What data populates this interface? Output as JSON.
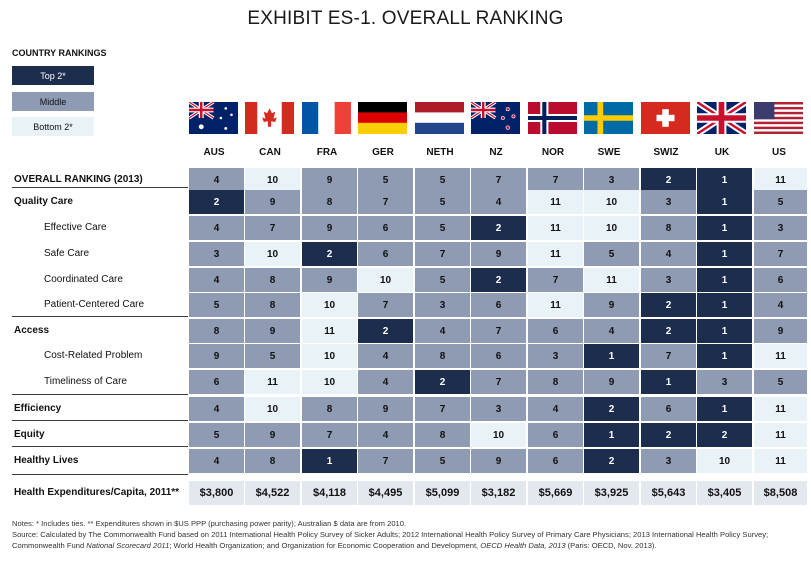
{
  "title": "EXHIBIT ES-1. OVERALL RANKING",
  "legend": {
    "heading": "COUNTRY RANKINGS",
    "items": [
      {
        "label": "Top 2*",
        "level": "top"
      },
      {
        "label": "Middle",
        "level": "mid"
      },
      {
        "label": "Bottom 2*",
        "level": "bot"
      }
    ]
  },
  "colors": {
    "top": "#1d2d4e",
    "middle": "#8e9bb3",
    "bottom": "#e8f2f7"
  },
  "countries": [
    {
      "code": "AUS",
      "flag": "australia-flag-icon"
    },
    {
      "code": "CAN",
      "flag": "canada-flag-icon"
    },
    {
      "code": "FRA",
      "flag": "france-flag-icon"
    },
    {
      "code": "GER",
      "flag": "germany-flag-icon"
    },
    {
      "code": "NETH",
      "flag": "netherlands-flag-icon"
    },
    {
      "code": "NZ",
      "flag": "new-zealand-flag-icon"
    },
    {
      "code": "NOR",
      "flag": "norway-flag-icon"
    },
    {
      "code": "SWE",
      "flag": "sweden-flag-icon"
    },
    {
      "code": "SWIZ",
      "flag": "switzerland-flag-icon"
    },
    {
      "code": "UK",
      "flag": "uk-flag-icon"
    },
    {
      "code": "US",
      "flag": "usa-flag-icon"
    }
  ],
  "rows": [
    {
      "label": "OVERALL RANKING (2013)",
      "type": "main",
      "values": [
        "4",
        "10",
        "9",
        "5",
        "5",
        "7",
        "7",
        "3",
        "2",
        "1",
        "11"
      ],
      "levels": [
        "mid",
        "bot",
        "mid",
        "mid",
        "mid",
        "mid",
        "mid",
        "mid",
        "top",
        "top",
        "bot"
      ]
    },
    {
      "label": "Quality Care",
      "type": "main",
      "values": [
        "2",
        "9",
        "8",
        "7",
        "5",
        "4",
        "11",
        "10",
        "3",
        "1",
        "5"
      ],
      "levels": [
        "top",
        "mid",
        "mid",
        "mid",
        "mid",
        "mid",
        "bot",
        "bot",
        "mid",
        "top",
        "mid"
      ]
    },
    {
      "label": "Effective Care",
      "type": "sub",
      "values": [
        "4",
        "7",
        "9",
        "6",
        "5",
        "2",
        "11",
        "10",
        "8",
        "1",
        "3"
      ],
      "levels": [
        "mid",
        "mid",
        "mid",
        "mid",
        "mid",
        "top",
        "bot",
        "bot",
        "mid",
        "top",
        "mid"
      ]
    },
    {
      "label": "Safe Care",
      "type": "sub",
      "values": [
        "3",
        "10",
        "2",
        "6",
        "7",
        "9",
        "11",
        "5",
        "4",
        "1",
        "7"
      ],
      "levels": [
        "mid",
        "bot",
        "top",
        "mid",
        "mid",
        "mid",
        "bot",
        "mid",
        "mid",
        "top",
        "mid"
      ]
    },
    {
      "label": "Coordinated Care",
      "type": "sub",
      "values": [
        "4",
        "8",
        "9",
        "10",
        "5",
        "2",
        "7",
        "11",
        "3",
        "1",
        "6"
      ],
      "levels": [
        "mid",
        "mid",
        "mid",
        "bot",
        "mid",
        "top",
        "mid",
        "bot",
        "mid",
        "top",
        "mid"
      ]
    },
    {
      "label": "Patient-Centered Care",
      "type": "sub",
      "values": [
        "5",
        "8",
        "10",
        "7",
        "3",
        "6",
        "11",
        "9",
        "2",
        "1",
        "4"
      ],
      "levels": [
        "mid",
        "mid",
        "bot",
        "mid",
        "mid",
        "mid",
        "bot",
        "mid",
        "top",
        "top",
        "mid"
      ]
    },
    {
      "label": "Access",
      "type": "main",
      "values": [
        "8",
        "9",
        "11",
        "2",
        "4",
        "7",
        "6",
        "4",
        "2",
        "1",
        "9"
      ],
      "levels": [
        "mid",
        "mid",
        "bot",
        "top",
        "mid",
        "mid",
        "mid",
        "mid",
        "top",
        "top",
        "mid"
      ]
    },
    {
      "label": "Cost-Related Problem",
      "type": "sub",
      "values": [
        "9",
        "5",
        "10",
        "4",
        "8",
        "6",
        "3",
        "1",
        "7",
        "1",
        "11"
      ],
      "levels": [
        "mid",
        "mid",
        "bot",
        "mid",
        "mid",
        "mid",
        "mid",
        "top",
        "mid",
        "top",
        "bot"
      ]
    },
    {
      "label": "Timeliness of Care",
      "type": "sub",
      "values": [
        "6",
        "11",
        "10",
        "4",
        "2",
        "7",
        "8",
        "9",
        "1",
        "3",
        "5"
      ],
      "levels": [
        "mid",
        "bot",
        "bot",
        "mid",
        "top",
        "mid",
        "mid",
        "mid",
        "top",
        "mid",
        "mid"
      ]
    },
    {
      "label": "Efficiency",
      "type": "main",
      "values": [
        "4",
        "10",
        "8",
        "9",
        "7",
        "3",
        "4",
        "2",
        "6",
        "1",
        "11"
      ],
      "levels": [
        "mid",
        "bot",
        "mid",
        "mid",
        "mid",
        "mid",
        "mid",
        "top",
        "mid",
        "top",
        "bot"
      ]
    },
    {
      "label": "Equity",
      "type": "main",
      "values": [
        "5",
        "9",
        "7",
        "4",
        "8",
        "10",
        "6",
        "1",
        "2",
        "2",
        "11"
      ],
      "levels": [
        "mid",
        "mid",
        "mid",
        "mid",
        "mid",
        "bot",
        "mid",
        "top",
        "top",
        "top",
        "bot"
      ]
    },
    {
      "label": "Healthy Lives",
      "type": "main",
      "values": [
        "4",
        "8",
        "1",
        "7",
        "5",
        "9",
        "6",
        "2",
        "3",
        "10",
        "11"
      ],
      "levels": [
        "mid",
        "mid",
        "top",
        "mid",
        "mid",
        "mid",
        "mid",
        "top",
        "mid",
        "bot",
        "bot"
      ]
    }
  ],
  "expenditures": {
    "label": "Health Expenditures/Capita, 2011**",
    "values": [
      "$3,800",
      "$4,522",
      "$4,118",
      "$4,495",
      "$5,099",
      "$3,182",
      "$5,669",
      "$3,925",
      "$5,643",
      "$3,405",
      "$8,508"
    ]
  },
  "notes": {
    "line1": "Notes: * Includes ties. ** Expenditures shown in $US PPP (purchasing power parity); Australian $ data are from 2010.",
    "line2_a": "Source: Calculated by The Commonwealth Fund based on 2011 International Health Policy Survey of Sicker Adults; 2012 International Health Policy Survey of Primary Care Physicians; 2013 International Health Policy Survey; Commonwealth Fund ",
    "line2_b": "National Scorecard 2011",
    "line2_c": "; World Health Organization; and Organization for Economic Cooperation and Development, ",
    "line2_d": "OECD Health Data, 2013",
    "line2_e": " (Paris: OECD, Nov. 2013)."
  }
}
